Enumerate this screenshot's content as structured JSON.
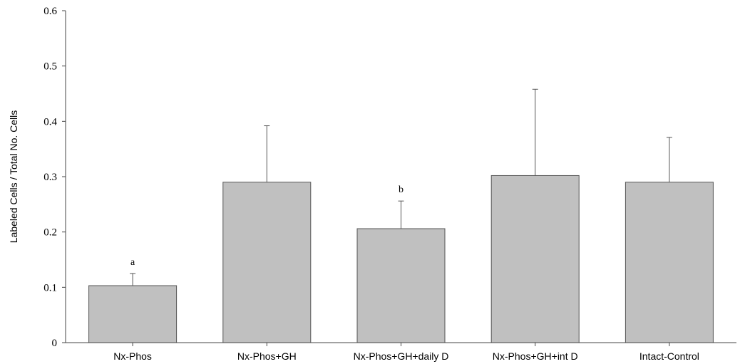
{
  "chart_data": {
    "type": "bar",
    "title": "",
    "xlabel": "",
    "ylabel": "Labeled Cells / Total No. Cells",
    "ylim": [
      0,
      0.6
    ],
    "yticks": [
      "0",
      "0.1",
      "0.2",
      "0.3",
      "0.4",
      "0.5",
      "0.6"
    ],
    "categories": [
      "Nx-Phos",
      "Nx-Phos+GH",
      "Nx-Phos+GH+daily D",
      "Nx-Phos+GH+int D",
      "Intact-Control"
    ],
    "values": [
      0.103,
      0.29,
      0.206,
      0.302,
      0.29
    ],
    "error_upper": [
      0.022,
      0.102,
      0.05,
      0.156,
      0.081
    ],
    "annotations": [
      "a",
      "",
      "b",
      "",
      ""
    ],
    "grid": false,
    "legend": "none",
    "bar_color": "#c0c0c0",
    "bar_edge_color": "#555555"
  }
}
